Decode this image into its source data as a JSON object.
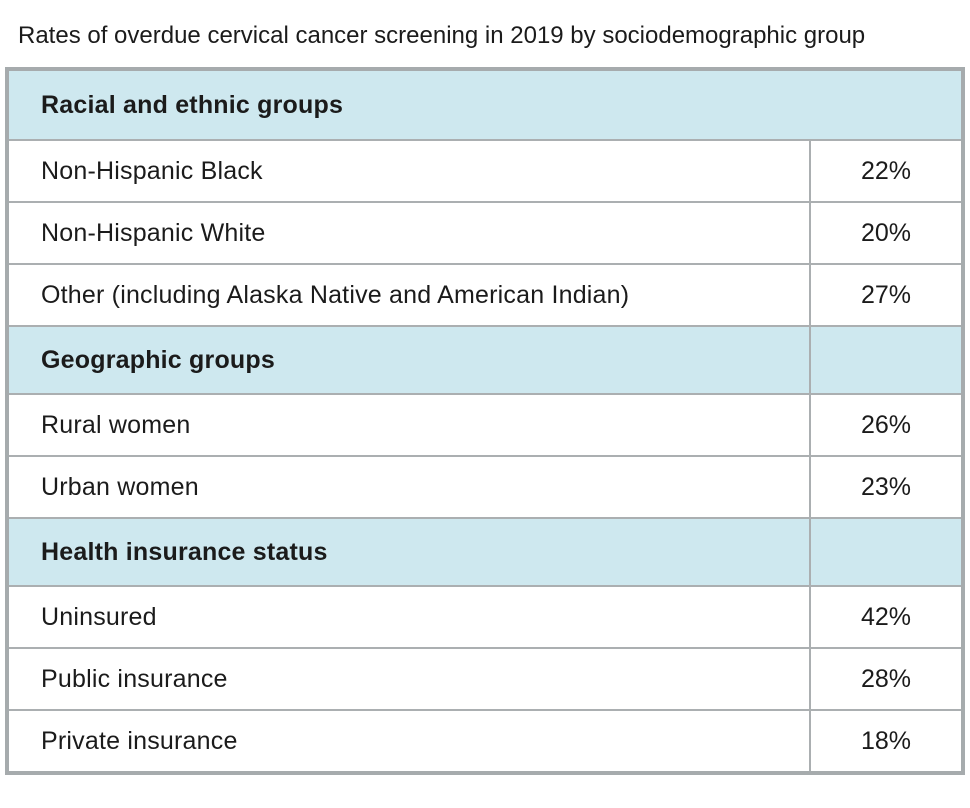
{
  "title": "Rates of overdue cervical cancer screening in 2019 by sociodemographic group",
  "colors": {
    "section_header_bg": "#cee8ef",
    "outer_border": "#a6abad",
    "inner_border": "#abafb1",
    "text": "#1b1b1b",
    "row_bg": "#ffffff"
  },
  "table": {
    "rows": [
      {
        "type": "section",
        "label": "Racial and ethnic groups"
      },
      {
        "type": "data",
        "label": "Non-Hispanic Black",
        "value": "22%"
      },
      {
        "type": "data",
        "label": "Non-Hispanic White",
        "value": "20%"
      },
      {
        "type": "data",
        "label": "Other (including Alaska Native and American Indian)",
        "value": "27%"
      },
      {
        "type": "section",
        "label": "Geographic groups"
      },
      {
        "type": "data",
        "label": "Rural women",
        "value": "26%"
      },
      {
        "type": "data",
        "label": "Urban women",
        "value": "23%"
      },
      {
        "type": "section",
        "label": "Health insurance status"
      },
      {
        "type": "data",
        "label": "Uninsured",
        "value": "42%"
      },
      {
        "type": "data",
        "label": "Public insurance",
        "value": "28%"
      },
      {
        "type": "data",
        "label": "Private insurance",
        "value": "18%"
      }
    ]
  },
  "chart_data": {
    "type": "table",
    "title": "Rates of overdue cervical cancer screening in 2019 by sociodemographic group",
    "unit": "%",
    "groups": [
      {
        "section": "Racial and ethnic groups",
        "rows": [
          {
            "label": "Non-Hispanic Black",
            "value": 22
          },
          {
            "label": "Non-Hispanic White",
            "value": 20
          },
          {
            "label": "Other (including Alaska Native and American Indian)",
            "value": 27
          }
        ]
      },
      {
        "section": "Geographic groups",
        "rows": [
          {
            "label": "Rural women",
            "value": 26
          },
          {
            "label": "Urban women",
            "value": 23
          }
        ]
      },
      {
        "section": "Health insurance status",
        "rows": [
          {
            "label": "Uninsured",
            "value": 42
          },
          {
            "label": "Public insurance",
            "value": 28
          },
          {
            "label": "Private insurance",
            "value": 18
          }
        ]
      }
    ]
  }
}
